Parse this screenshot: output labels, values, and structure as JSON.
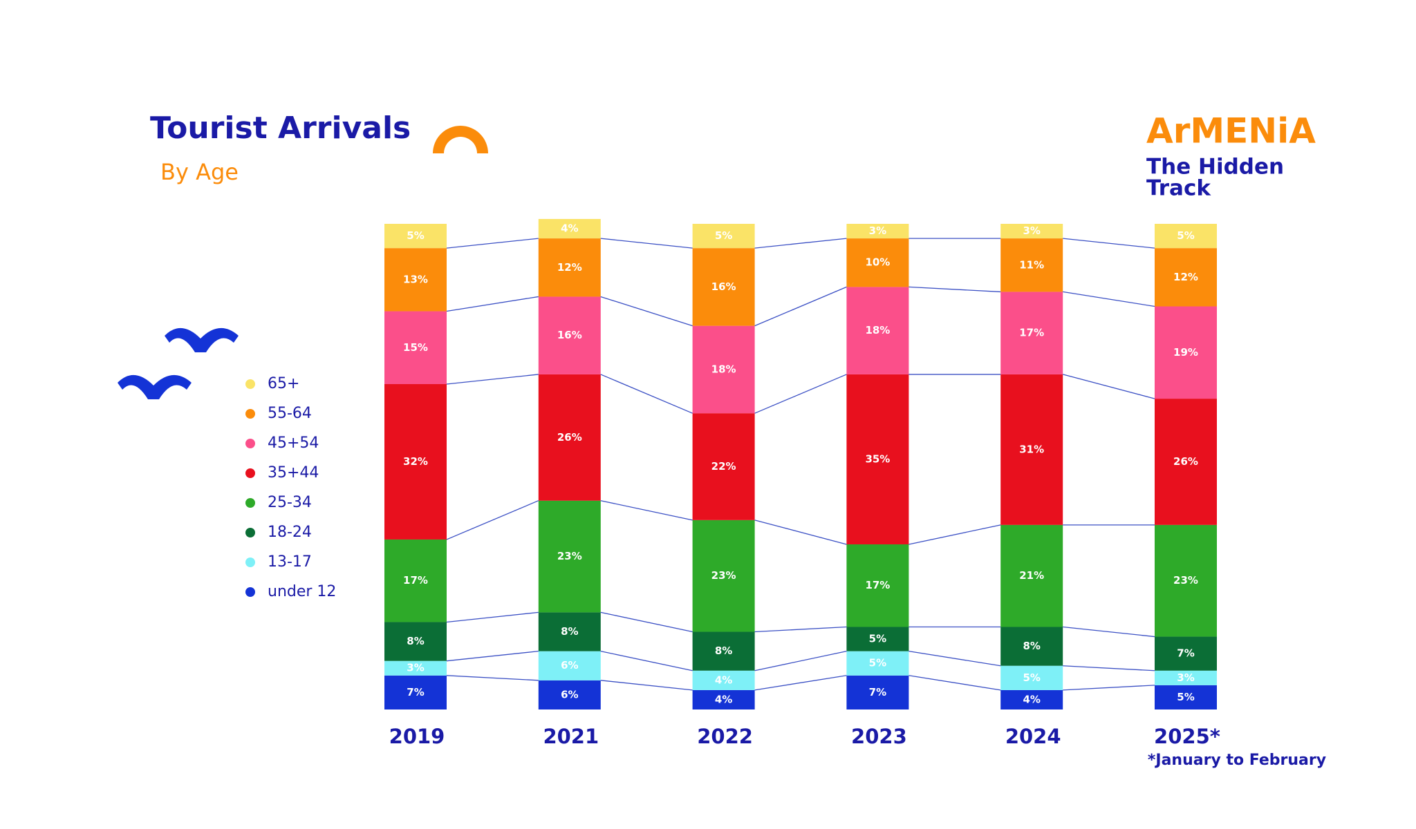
{
  "chart_data": {
    "type": "stacked_bar",
    "title": "Tourist Arrivals",
    "subtitle": "By Age",
    "brand": [
      "ArMENiA",
      "The Hidden",
      "Track"
    ],
    "note": "*January to February",
    "categories": [
      "2019",
      "2021",
      "2022",
      "2023",
      "2024",
      "2025*"
    ],
    "ylim": [
      0,
      100
    ],
    "series": [
      {
        "name": "under 12",
        "color": "#1433d6",
        "values": [
          7,
          6,
          4,
          7,
          4,
          5
        ],
        "value_labels": [
          "7%",
          "6%",
          "4%",
          "7%",
          "4%",
          "5%"
        ]
      },
      {
        "name": "13-17",
        "color": "#7ef0f7",
        "values": [
          3,
          6,
          4,
          5,
          5,
          3
        ],
        "value_labels": [
          "3%",
          "6%",
          "4%",
          "5%",
          "5%",
          "3%"
        ]
      },
      {
        "name": "18-24",
        "color": "#0b6e36",
        "values": [
          8,
          8,
          8,
          5,
          8,
          7
        ],
        "value_labels": [
          "8%",
          "8%",
          "8%",
          "5%",
          "8%",
          "7%"
        ]
      },
      {
        "name": "25-34",
        "color": "#2eaa29",
        "values": [
          17,
          23,
          23,
          17,
          21,
          23
        ],
        "value_labels": [
          "17%",
          "23%",
          "23%",
          "17%",
          "21%",
          "23%"
        ]
      },
      {
        "name": "35+44",
        "color": "#e8101e",
        "values": [
          32,
          26,
          22,
          35,
          31,
          26
        ],
        "value_labels": [
          "32%",
          "26%",
          "22%",
          "35%",
          "31%",
          "26%"
        ]
      },
      {
        "name": "45+54",
        "color": "#fb4f8a",
        "values": [
          15,
          16,
          18,
          18,
          17,
          19
        ],
        "value_labels": [
          "15%",
          "16%",
          "18%",
          "18%",
          "17%",
          "19%"
        ]
      },
      {
        "name": "55-64",
        "color": "#fb8c0b",
        "values": [
          13,
          12,
          16,
          10,
          11,
          12
        ],
        "value_labels": [
          "13%",
          "12%",
          "16%",
          "10%",
          "11%",
          "12%"
        ]
      },
      {
        "name": "65+",
        "color": "#fae367",
        "values": [
          5,
          4,
          5,
          3,
          3,
          5
        ],
        "value_labels": [
          "5%",
          "4%",
          "5%",
          "3%",
          "3%",
          "5%"
        ]
      }
    ]
  }
}
